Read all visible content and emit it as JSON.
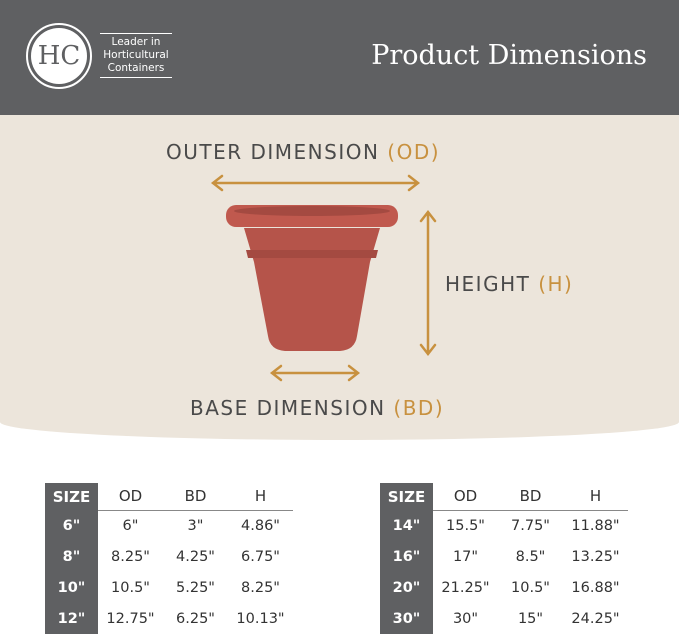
{
  "header": {
    "logo_text": "HC",
    "tagline": [
      "Leader in",
      "Horticultural",
      "Containers"
    ],
    "title": "Product Dimensions"
  },
  "colors": {
    "header_bg": "#5f6062",
    "accent": "#c8913f",
    "pot": "#b8554a",
    "background": "#ece5db"
  },
  "diagram": {
    "outer": {
      "text": "OUTER DIMENSION ",
      "abbr": "(OD)"
    },
    "height": {
      "text": "HEIGHT ",
      "abbr": "(H)"
    },
    "base": {
      "text": "BASE DIMENSION ",
      "abbr": "(BD)"
    }
  },
  "tables": [
    {
      "headers": [
        "SIZE",
        "OD",
        "BD",
        "H"
      ],
      "rows": [
        [
          "6\"",
          "6\"",
          "3\"",
          "4.86\""
        ],
        [
          "8\"",
          "8.25\"",
          "4.25\"",
          "6.75\""
        ],
        [
          "10\"",
          "10.5\"",
          "5.25\"",
          "8.25\""
        ],
        [
          "12\"",
          "12.75\"",
          "6.25\"",
          "10.13\""
        ]
      ]
    },
    {
      "headers": [
        "SIZE",
        "OD",
        "BD",
        "H"
      ],
      "rows": [
        [
          "14\"",
          "15.5\"",
          "7.75\"",
          "11.88\""
        ],
        [
          "16\"",
          "17\"",
          "8.5\"",
          "13.25\""
        ],
        [
          "20\"",
          "21.25\"",
          "10.5\"",
          "16.88\""
        ],
        [
          "30\"",
          "30\"",
          "15\"",
          "24.25\""
        ]
      ]
    }
  ]
}
